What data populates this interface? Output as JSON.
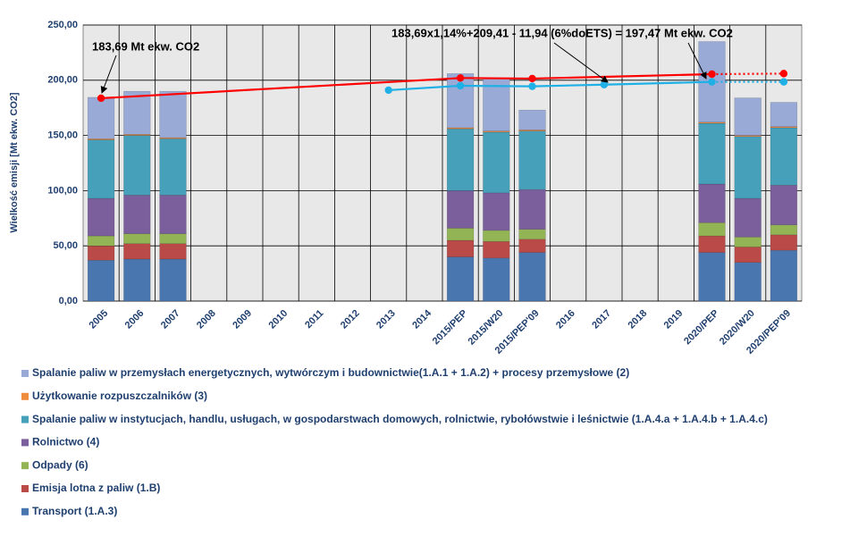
{
  "chart_data": {
    "type": "bar",
    "y_label": "Wielkość emisji [Mt ekw. CO2]",
    "categories": [
      "2005",
      "2006",
      "2007",
      "2008",
      "2009",
      "2010",
      "2011",
      "2012",
      "2013",
      "2014",
      "2015/PEP",
      "2015/W20",
      "2015/PEP'09",
      "2016",
      "2017",
      "2018",
      "2019",
      "2020/PEP",
      "2020/W20",
      "2020/PEP'09"
    ],
    "ylim": [
      0,
      250
    ],
    "yticks": [
      {
        "value": 0,
        "label": "0,00"
      },
      {
        "value": 50,
        "label": "50,00"
      },
      {
        "value": 100,
        "label": "100,00"
      },
      {
        "value": 150,
        "label": "150,00"
      },
      {
        "value": 200,
        "label": "200,00"
      },
      {
        "value": 250,
        "label": "250,00"
      }
    ],
    "grid": true,
    "stacked": true,
    "series": [
      {
        "name": "Transport (1.A.3)",
        "color": "#4a76b0",
        "values": [
          37,
          38,
          38,
          null,
          null,
          null,
          null,
          null,
          null,
          null,
          40,
          39,
          44,
          null,
          null,
          null,
          null,
          44,
          35,
          46
        ]
      },
      {
        "name": "Emisja lotna z paliw (1.B)",
        "color": "#b94a47",
        "values": [
          13,
          14,
          14,
          null,
          null,
          null,
          null,
          null,
          null,
          null,
          15,
          15,
          12,
          null,
          null,
          null,
          null,
          15,
          14,
          14
        ]
      },
      {
        "name": "Odpady (6)",
        "color": "#93b455",
        "values": [
          9,
          9,
          9,
          null,
          null,
          null,
          null,
          null,
          null,
          null,
          11,
          10,
          9,
          null,
          null,
          null,
          null,
          12,
          9,
          9
        ]
      },
      {
        "name": "Rolnictwo (4)",
        "color": "#7a5f9c",
        "values": [
          34,
          35,
          35,
          null,
          null,
          null,
          null,
          null,
          null,
          null,
          34,
          34,
          36,
          null,
          null,
          null,
          null,
          35,
          35,
          36
        ]
      },
      {
        "name": "Spalanie paliw w instytucjach, handlu, usługach, w gospodarstwach domowych, rolnictwie, rybołówstwie i leśnictwie (1.A.4.a + 1.A.4.b + 1.A.4.c)",
        "color": "#46a0b9",
        "values": [
          53,
          54,
          51,
          null,
          null,
          null,
          null,
          null,
          null,
          null,
          56,
          55,
          53,
          null,
          null,
          null,
          null,
          55,
          56,
          52
        ]
      },
      {
        "name": "Użytkowanie rozpuszczalników (3)",
        "color": "#f08c3e",
        "values": [
          1,
          1,
          1,
          null,
          null,
          null,
          null,
          null,
          null,
          null,
          1,
          1,
          1,
          null,
          null,
          null,
          null,
          1,
          1,
          1
        ]
      },
      {
        "name": "Spalanie paliw w przemysłach energetycznych, wytwórczym i budownictwie(1.A.1 + 1.A.2) + procesy przemysłowe (2)",
        "color": "#9aaad6",
        "values": [
          37.5,
          39,
          42,
          null,
          null,
          null,
          null,
          null,
          null,
          null,
          49,
          48,
          18,
          null,
          null,
          null,
          null,
          73,
          34,
          22
        ]
      }
    ],
    "lines": [
      {
        "color": "#ff0000",
        "tail_dotted": true,
        "values": [
          183.69,
          null,
          null,
          null,
          null,
          null,
          null,
          null,
          null,
          null,
          202,
          null,
          201.5,
          null,
          null,
          null,
          null,
          205.5,
          null,
          206
        ]
      },
      {
        "color": "#1fb0e6",
        "tail_dotted": true,
        "values": [
          null,
          null,
          null,
          null,
          null,
          null,
          null,
          null,
          191,
          null,
          195,
          null,
          194.5,
          null,
          196,
          null,
          null,
          198.5,
          null,
          198.5
        ]
      }
    ],
    "annotations": [
      "183,69 Mt ekw. CO2",
      "183,69x1,14%+209,41 - 11,94 (6%doETS) = 197,47 Mt ekw. CO2"
    ]
  }
}
